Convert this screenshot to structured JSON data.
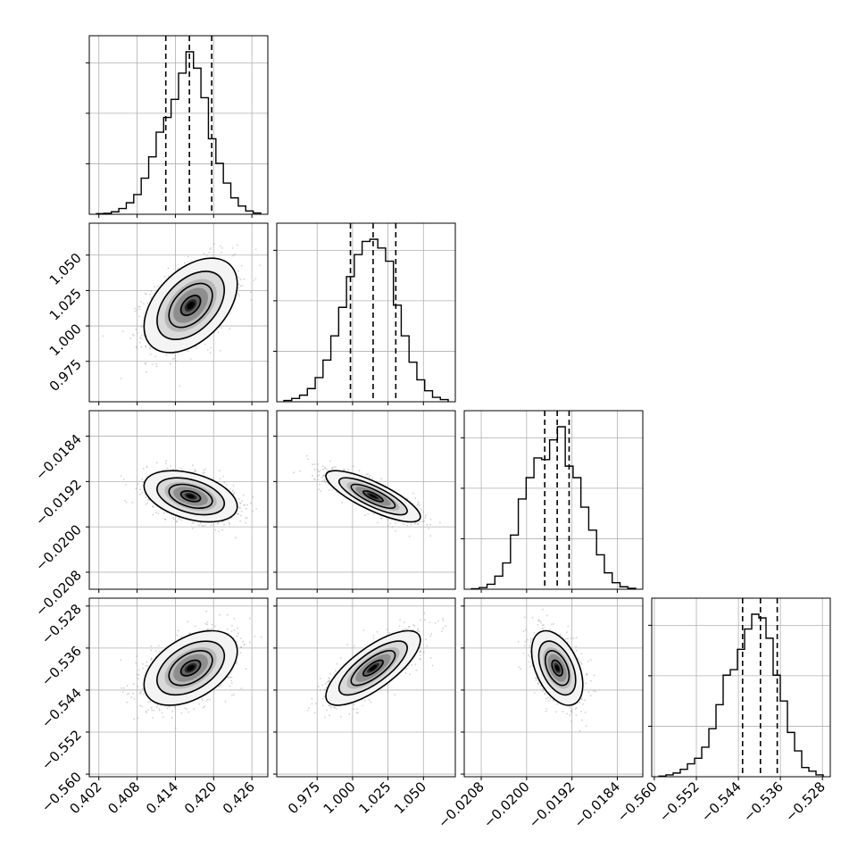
{
  "chart_data": {
    "type": "corner",
    "grid": true,
    "params": [
      {
        "range": [
          0.4005,
          0.4285
        ],
        "ticks": [
          0.402,
          0.408,
          0.414,
          0.42,
          0.426
        ],
        "tick_labels": [
          "0.402",
          "0.408",
          "0.414",
          "0.420",
          "0.426"
        ],
        "quantiles": [
          0.4125,
          0.4162,
          0.4197
        ],
        "hist": [
          0.4,
          0.6,
          1.5,
          3.5,
          7,
          12,
          22,
          35,
          50,
          59,
          70,
          86,
          99,
          89,
          71,
          46,
          31,
          19,
          10,
          5,
          2,
          0.8
        ],
        "mean": 0.4164,
        "sd": 0.0034
      },
      {
        "range": [
          0.9465,
          1.0725
        ],
        "ticks": [
          0.975,
          1.0,
          1.025,
          1.05
        ],
        "tick_labels": [
          "0.975",
          "1.000",
          "1.025",
          "1.050"
        ],
        "quantiles": [
          0.9985,
          1.0145,
          1.0305
        ],
        "hist": [
          0.6,
          1.5,
          3,
          6,
          11,
          19,
          30,
          43,
          57,
          67,
          73,
          74,
          70,
          64,
          44,
          30,
          18,
          10,
          5,
          2,
          1
        ],
        "mean": 1.0145,
        "sd": 0.0155
      },
      {
        "range": [
          -0.0211,
          -0.01795
        ],
        "ticks": [
          -0.0208,
          -0.02,
          -0.0192,
          -0.0184
        ],
        "tick_labels": [
          "−0.0208",
          "−0.0200",
          "−0.0192",
          "−0.0184"
        ],
        "quantiles": [
          -0.01968,
          -0.01946,
          -0.01925
        ],
        "hist": [
          0.3,
          1,
          3,
          8,
          16,
          33,
          55,
          68,
          80,
          79,
          91,
          99,
          75,
          68,
          50,
          36,
          21,
          10,
          4,
          1.5,
          0.6
        ],
        "mean": -0.01946,
        "sd": 0.00021
      },
      {
        "range": [
          -0.5605,
          -0.5265
        ],
        "ticks": [
          -0.56,
          -0.552,
          -0.544,
          -0.536,
          -0.528
        ],
        "tick_labels": [
          "−0.560",
          "−0.552",
          "−0.544",
          "−0.536",
          "−0.528"
        ],
        "quantiles": [
          -0.5432,
          -0.5398,
          -0.5366
        ],
        "hist": [
          0.3,
          1,
          2,
          4,
          7,
          10,
          16,
          26,
          39,
          55,
          58,
          69,
          80,
          88,
          86,
          75,
          55,
          41,
          24,
          14,
          5,
          3,
          1
        ],
        "mean": -0.5398,
        "sd": 0.0033
      }
    ],
    "correlations": [
      [
        1.0,
        0.45,
        -0.4,
        0.45
      ],
      [
        0.45,
        1.0,
        -0.8,
        0.75
      ],
      [
        -0.4,
        -0.8,
        1.0,
        -0.45
      ],
      [
        0.45,
        0.75,
        -0.45,
        1.0
      ]
    ],
    "colors": {
      "line": "#000000",
      "grid": "#b0b0b0",
      "scatter": "#9a9a9a"
    }
  }
}
